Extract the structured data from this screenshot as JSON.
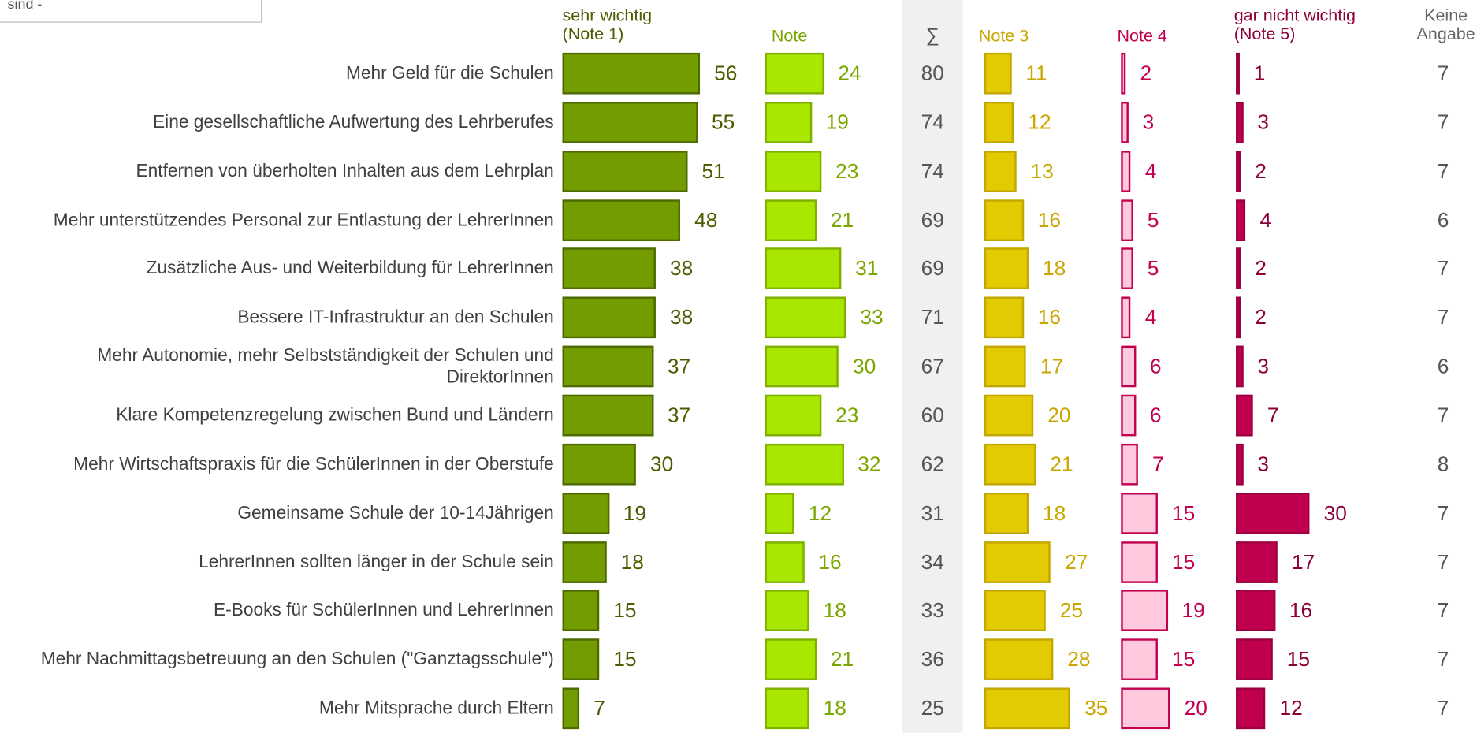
{
  "chart_data": {
    "type": "bar",
    "box_text": "sind -",
    "categories": [
      "Mehr Geld für die Schulen",
      "Eine gesellschaftliche Aufwertung des Lehrberufes",
      "Entfernen von überholten Inhalten aus dem Lehrplan",
      "Mehr unterstützendes Personal zur Entlastung der LehrerInnen",
      "Zusätzliche Aus- und Weiterbildung für LehrerInnen",
      "Bessere IT-Infrastruktur an den Schulen",
      "Mehr Autonomie, mehr Selbstständigkeit der Schulen und\nDirektorInnen",
      "Klare Kompetenzregelung zwischen Bund und Ländern",
      "Mehr Wirtschaftspraxis für die SchülerInnen in der Oberstufe",
      "Gemeinsame Schule der 10-14Jährigen",
      "LehrerInnen sollten länger in der Schule sein",
      "E-Books für SchülerInnen und LehrerInnen",
      "Mehr Nachmittagsbetreuung an den Schulen (\"Ganztagsschule\")",
      "Mehr Mitsprache durch Eltern"
    ],
    "series": [
      {
        "name": "sehr wichtig\n(Note 1)",
        "color": "#739c00",
        "stroke": "#4d6a00",
        "label_color": "#4a5d00",
        "values": [
          56,
          55,
          51,
          48,
          38,
          38,
          37,
          37,
          30,
          19,
          18,
          15,
          15,
          7
        ]
      },
      {
        "name": "Note",
        "color": "#a9e600",
        "stroke": "#7fb000",
        "label_color": "#7aa600",
        "values": [
          24,
          19,
          23,
          21,
          31,
          33,
          30,
          23,
          32,
          12,
          16,
          18,
          21,
          18
        ]
      },
      {
        "name": "Note 3",
        "color": "#e2cb00",
        "stroke": "#c2a700",
        "label_color": "#c9a600",
        "values": [
          11,
          12,
          13,
          16,
          18,
          16,
          17,
          20,
          21,
          18,
          27,
          25,
          28,
          35
        ]
      },
      {
        "name": "Note 4",
        "color": "#ffc9dd",
        "stroke": "#c2004f",
        "label_color": "#c2004f",
        "values": [
          2,
          3,
          4,
          5,
          5,
          4,
          6,
          6,
          7,
          15,
          15,
          19,
          15,
          20
        ]
      },
      {
        "name": "gar nicht wichtig\n(Note 5)",
        "color": "#c0004f",
        "stroke": "#9a003f",
        "label_color": "#8c003a",
        "values": [
          1,
          3,
          2,
          4,
          2,
          2,
          3,
          7,
          3,
          30,
          17,
          16,
          15,
          12
        ]
      }
    ],
    "sum": {
      "name": "∑",
      "values": [
        80,
        74,
        74,
        69,
        69,
        71,
        67,
        60,
        62,
        31,
        34,
        33,
        36,
        25
      ]
    },
    "no_answer": {
      "name": "Keine\nAngabe",
      "values": [
        7,
        7,
        7,
        6,
        7,
        7,
        6,
        7,
        8,
        7,
        7,
        7,
        7,
        7
      ]
    }
  }
}
